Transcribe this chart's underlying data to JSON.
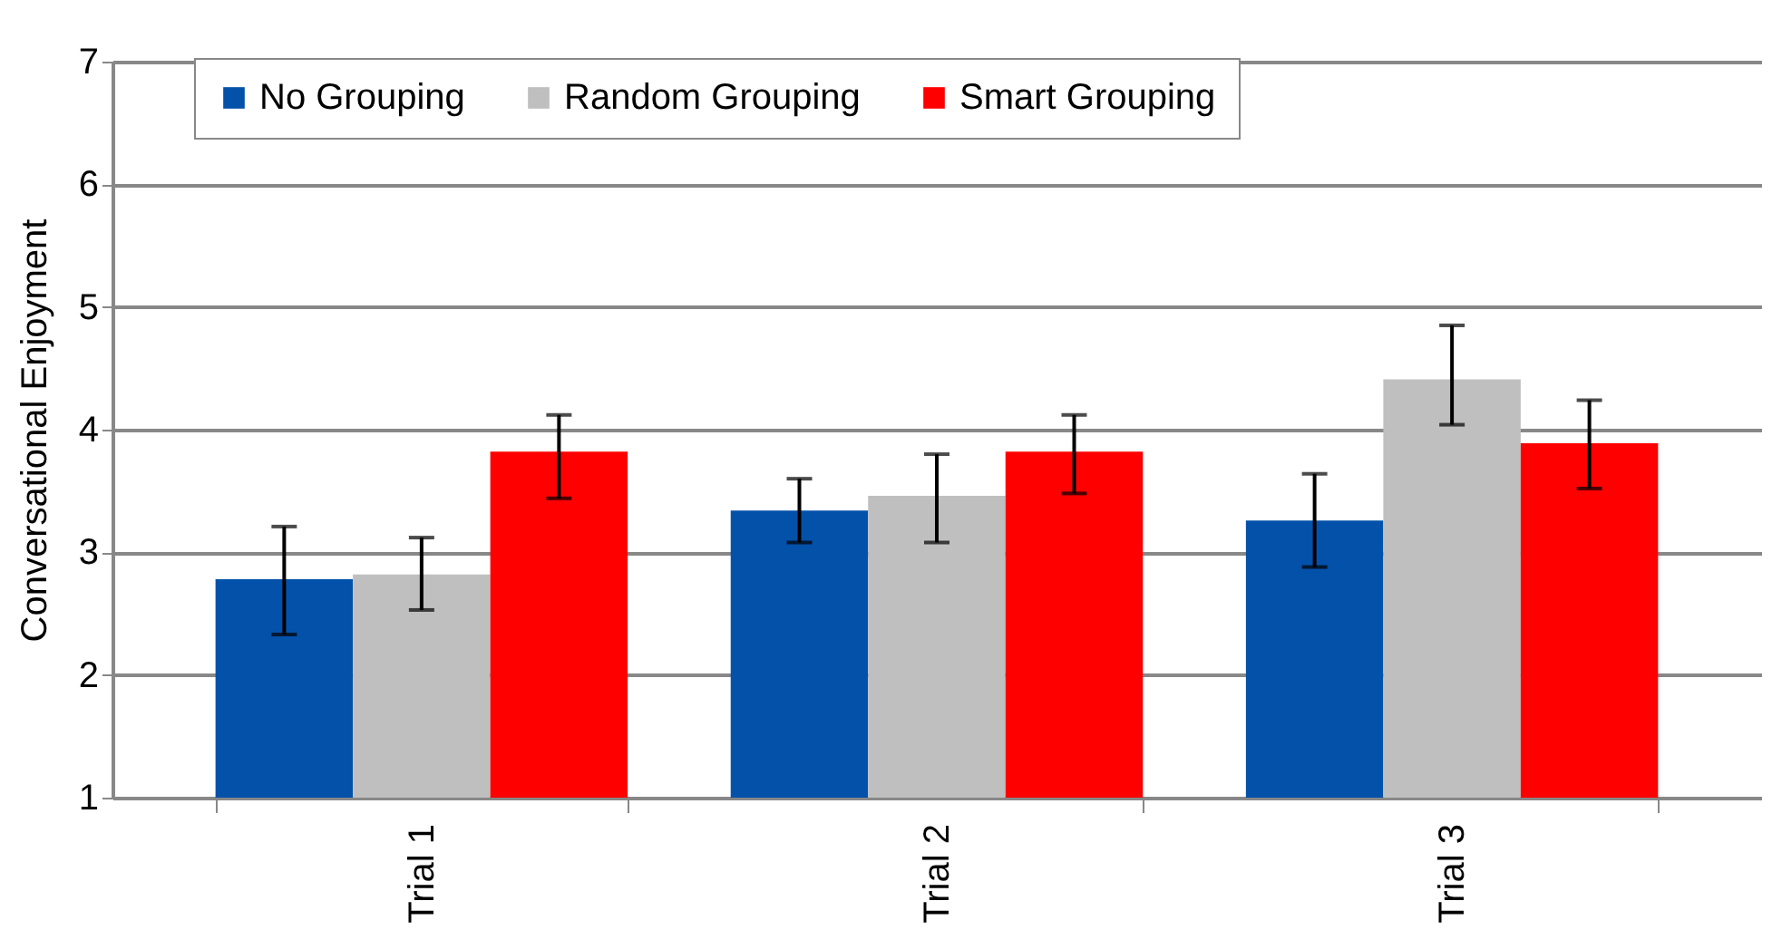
{
  "chart_data": {
    "type": "bar",
    "ylabel": "Conversational Enjoyment",
    "categories": [
      "Trial 1",
      "Trial 2",
      "Trial 3"
    ],
    "series": [
      {
        "name": "No Grouping",
        "color": "#0451aa",
        "values": [
          2.78,
          3.34,
          3.26
        ],
        "errors": [
          [
            2.33,
            3.21
          ],
          [
            3.08,
            3.6
          ],
          [
            2.88,
            3.64
          ]
        ]
      },
      {
        "name": "Random Grouping",
        "color": "#bfbfbf",
        "values": [
          2.82,
          3.46,
          4.41
        ],
        "errors": [
          [
            2.53,
            3.12
          ],
          [
            3.08,
            3.8
          ],
          [
            4.04,
            4.85
          ]
        ]
      },
      {
        "name": "Smart Grouping",
        "color": "#ff0000",
        "values": [
          3.82,
          3.82,
          3.89
        ],
        "errors": [
          [
            3.44,
            4.12
          ],
          [
            3.48,
            4.12
          ],
          [
            3.52,
            4.24
          ]
        ]
      }
    ],
    "ylim": [
      1,
      7
    ],
    "yticks": [
      1,
      2,
      3,
      4,
      5,
      6,
      7
    ],
    "grid": "y",
    "legend": "top"
  }
}
